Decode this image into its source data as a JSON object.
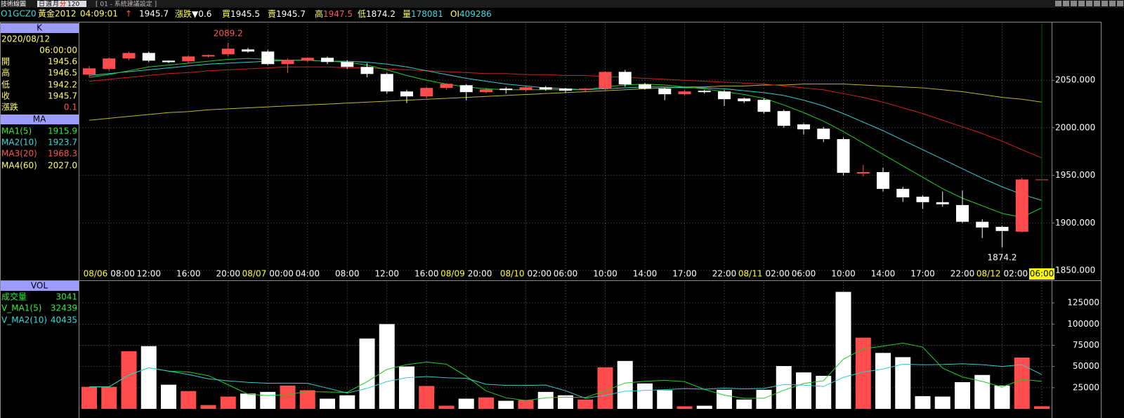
{
  "toolbar": {
    "title": "技術線圖",
    "periods": [
      "日",
      "週",
      "月",
      "分"
    ],
    "count": "120",
    "setting": "[ 01 - 系統建議設定 ]"
  },
  "quote": {
    "symbol": "O1GCZ0",
    "name": "黃金2012",
    "time": "04:09:01",
    "arrow": "↑",
    "last": "1945.7",
    "change_label": "漲跌",
    "change": "▼0.6",
    "bid_label": "買",
    "bid": "1945.5",
    "ask_label": "賣",
    "ask": "1945.7",
    "high_label": "高",
    "high": "1947.5",
    "low_label": "低",
    "low": "1874.2",
    "volume_label": "量",
    "volume": "178081",
    "oi_label": "OI",
    "oi": "409286"
  },
  "info_panel": {
    "k": {
      "title": "K",
      "date": "2020/08/12",
      "time": "06:00:00",
      "rows": [
        {
          "label": "開",
          "value": "1945.6"
        },
        {
          "label": "高",
          "value": "1946.5"
        },
        {
          "label": "低",
          "value": "1942.2"
        },
        {
          "label": "收",
          "value": "1945.7"
        },
        {
          "label": "漲跌",
          "value": "0.1"
        }
      ]
    },
    "ma": {
      "title": "MA",
      "rows": [
        {
          "label": "MA1(5)",
          "value": "1915.9"
        },
        {
          "label": "MA2(10)",
          "value": "1923.7"
        },
        {
          "label": "MA3(20)",
          "value": "1968.3"
        },
        {
          "label": "MA4(60)",
          "value": "2027.0"
        }
      ]
    },
    "vol": {
      "title": "VOL",
      "rows": [
        {
          "label": "成交量",
          "value": "3041"
        },
        {
          "label": "V_MA1(5)",
          "value": "32439"
        },
        {
          "label": "V_MA2(10)",
          "value": "40435"
        }
      ]
    }
  },
  "chart_data": [
    {
      "type": "candlestick",
      "up_color": "#ff4d4d",
      "down_color": "#ffffff",
      "grid": true,
      "categories": [
        null,
        "08:00",
        null,
        "12:00",
        null,
        "16:00",
        null,
        "20:00",
        null,
        "00:00",
        null,
        "04:00",
        null,
        "08:00",
        null,
        "12:00",
        null,
        "16:00",
        null,
        "20:00",
        null,
        null,
        "02:00",
        null,
        "06:00",
        null,
        "10:00",
        null,
        "14:00",
        null,
        "17:00",
        null,
        "22:00",
        null,
        "02:00",
        null,
        "06:00",
        null,
        "10:00",
        null,
        "14:00",
        null,
        "17:00",
        null,
        "22:00",
        null,
        "02:00",
        null,
        "06:00"
      ],
      "dates": [
        null,
        "08/06",
        null,
        null,
        null,
        null,
        null,
        null,
        null,
        "08/07",
        null,
        null,
        null,
        null,
        null,
        null,
        null,
        null,
        null,
        "08/09",
        null,
        null,
        "08/10",
        null,
        null,
        null,
        null,
        null,
        null,
        null,
        null,
        null,
        null,
        null,
        "08/11",
        null,
        null,
        null,
        null,
        null,
        null,
        null,
        null,
        null,
        null,
        null,
        "08/12",
        null,
        null
      ],
      "open": [
        2055.9,
        2061.8,
        2072.9,
        2078.7,
        2070.6,
        2069.9,
        2075,
        2077.3,
        2082.4,
        2080.2,
        2067,
        2070.6,
        2073.6,
        2069.2,
        2064,
        2056.6,
        2038.2,
        2033,
        2041.9,
        2044.8,
        2037.5,
        2041.2,
        2039.7,
        2042.6,
        2041.2,
        2039.7,
        2041.2,
        2058.8,
        2045.6,
        2041.2,
        2035.3,
        2038.9,
        2038.2,
        2030.8,
        2029.4,
        2017.6,
        2003.6,
        1999.1,
        1988.1,
        1952,
        1953.4,
        1935.8,
        1927.6,
        1921.8,
        1918.8,
        1901.2,
        1895.9,
        1890.8,
        1945.6
      ],
      "high": [
        2065,
        2074,
        2080,
        2080,
        2071,
        2076,
        2077,
        2089.2,
        2084,
        2082,
        2073,
        2074,
        2075,
        2071,
        2068,
        2058,
        2040,
        2043,
        2047,
        2046,
        2042,
        2043,
        2044,
        2044,
        2042,
        2042,
        2059.5,
        2061,
        2047,
        2042,
        2040,
        2040,
        2040,
        2032,
        2031,
        2019,
        2005,
        2001,
        1990,
        1961,
        1958,
        1938,
        1929,
        1933,
        1934,
        1904,
        1897,
        1947.5,
        1946.5
      ],
      "low": [
        2053,
        2060,
        2071,
        2069,
        2068,
        2068,
        2074,
        2075,
        2079,
        2066,
        2058,
        2069,
        2067,
        2062,
        2053,
        2036,
        2026,
        2031,
        2040,
        2029,
        2036,
        2036,
        2038,
        2039,
        2037,
        2038,
        2039,
        2043,
        2040,
        2029,
        2034,
        2036,
        2023,
        2026,
        2015,
        2000,
        1993,
        1985,
        1950,
        1949,
        1933,
        1922,
        1915,
        1917,
        1900,
        1884,
        1874.2,
        1890,
        1942.2
      ],
      "close": [
        2062.5,
        2072.9,
        2078.7,
        2070.6,
        2069,
        2075,
        2076.5,
        2083.2,
        2080.2,
        2067,
        2071.4,
        2073.6,
        2069.2,
        2064,
        2056.6,
        2038.2,
        2033,
        2041.9,
        2046.3,
        2037.5,
        2040.4,
        2039.7,
        2042.6,
        2040.4,
        2039,
        2041.2,
        2058.8,
        2045.6,
        2041.2,
        2035.3,
        2038.2,
        2037.5,
        2030.1,
        2027.9,
        2016.8,
        2002.1,
        1998.4,
        1988.1,
        1952.7,
        1953.4,
        1935.8,
        1926.9,
        1921.8,
        1919.6,
        1901.2,
        1895.2,
        1891.5,
        1945.7,
        1945.7
      ],
      "series": [
        {
          "name": "MA1(5)",
          "color": "#22cc22",
          "values": [
            2053,
            2056,
            2060,
            2064,
            2066,
            2068,
            2070,
            2072,
            2073,
            2072,
            2071,
            2071,
            2070,
            2069,
            2066,
            2061,
            2055,
            2050,
            2046,
            2043,
            2041,
            2040,
            2040,
            2040,
            2040,
            2040,
            2043,
            2045,
            2046,
            2045,
            2043,
            2041,
            2038,
            2035,
            2031,
            2024,
            2016,
            2007,
            1996,
            1984,
            1972,
            1960,
            1948,
            1936,
            1926,
            1918,
            1910,
            1906,
            1915.9
          ]
        },
        {
          "name": "MA2(10)",
          "color": "#33cccc",
          "values": [
            2055,
            2057,
            2059,
            2061,
            2063,
            2065,
            2067,
            2068,
            2069,
            2070,
            2071,
            2071,
            2070,
            2070,
            2069,
            2067,
            2064,
            2060,
            2056,
            2052,
            2049,
            2046,
            2044,
            2042,
            2041,
            2040,
            2041,
            2042,
            2043,
            2043,
            2042,
            2042,
            2041,
            2039,
            2037,
            2034,
            2029,
            2023,
            2015,
            2006,
            1997,
            1987,
            1977,
            1967,
            1957,
            1947,
            1938,
            1930,
            1923.7
          ]
        },
        {
          "name": "MA3(20)",
          "color": "#cc2222",
          "values": [
            2049,
            2051,
            2053,
            2055,
            2057,
            2058,
            2060,
            2061,
            2062,
            2063,
            2064,
            2064,
            2064,
            2063,
            2063,
            2062,
            2061,
            2060,
            2059,
            2058,
            2057,
            2057,
            2056,
            2056,
            2055,
            2055,
            2054,
            2053,
            2052,
            2051,
            2050,
            2049,
            2048,
            2047,
            2046,
            2044,
            2042,
            2040,
            2036,
            2032,
            2027,
            2021,
            2015,
            2008,
            2001,
            1994,
            1986,
            1977,
            1968.3
          ]
        },
        {
          "name": "MA4(60)",
          "color": "#b8b830",
          "values": [
            2008,
            2010,
            2012,
            2014,
            2016,
            2017,
            2019,
            2020,
            2021,
            2022,
            2023,
            2024,
            2025,
            2026,
            2027,
            2028,
            2029,
            2030,
            2031,
            2032,
            2033,
            2034,
            2035,
            2036,
            2037,
            2038,
            2039,
            2040,
            2041,
            2042,
            2043,
            2043,
            2044,
            2044,
            2045,
            2045,
            2046,
            2046,
            2046,
            2045,
            2044,
            2043,
            2042,
            2040,
            2038,
            2035,
            2032,
            2030,
            2027
          ]
        }
      ],
      "ylim": [
        1850,
        2110
      ],
      "yticks": [
        {
          "value": 1850,
          "label": "1850.000"
        },
        {
          "value": 1900,
          "label": "1900.000"
        },
        {
          "value": 1950,
          "label": "1950.000"
        },
        {
          "value": 2000,
          "label": "2000.000"
        },
        {
          "value": 2050,
          "label": "2050.000"
        }
      ]
    },
    {
      "type": "bar",
      "grid": true,
      "values": [
        26000,
        26000,
        68000,
        74000,
        28500,
        21000,
        4500,
        14500,
        18000,
        20000,
        27500,
        22000,
        12000,
        16000,
        83000,
        100000,
        50000,
        27000,
        3700,
        12000,
        13500,
        9500,
        10500,
        20000,
        16000,
        11000,
        49000,
        56500,
        30000,
        22000,
        3000,
        3700,
        22500,
        11000,
        22500,
        50500,
        43000,
        39000,
        138000,
        84000,
        66000,
        61000,
        15000,
        14500,
        31500,
        40000,
        27500,
        60500,
        3041
      ],
      "series": [
        {
          "name": "V_MA1(5)",
          "color": "#22cc22",
          "values": [
            26000,
            26000,
            40000,
            48500,
            44500,
            43500,
            39200,
            28500,
            17300,
            15600,
            16900,
            20400,
            19900,
            19500,
            32100,
            46600,
            52200,
            55200,
            52700,
            38500,
            21200,
            13100,
            9800,
            13100,
            13900,
            13400,
            21300,
            30500,
            32500,
            33700,
            32100,
            23000,
            16200,
            12400,
            12500,
            22000,
            29900,
            33200,
            58600,
            70900,
            74000,
            77600,
            72800,
            48100,
            37600,
            32400,
            25700,
            34800,
            32439
          ]
        },
        {
          "name": "V_MA2(10)",
          "color": "#33cccc",
          "values": [
            26000,
            26000,
            40000,
            48500,
            44500,
            40600,
            35400,
            33000,
            31300,
            30300,
            30400,
            30100,
            24500,
            18700,
            24200,
            32200,
            36800,
            38100,
            36700,
            36000,
            29000,
            27800,
            27700,
            28100,
            21400,
            12500,
            16100,
            20800,
            21800,
            22700,
            23900,
            23200,
            24400,
            23500,
            24100,
            28700,
            28100,
            26400,
            37200,
            43400,
            47000,
            52700,
            52000,
            52300,
            53200,
            52100,
            50000,
            52100,
            40435
          ]
        }
      ],
      "ylim": [
        0,
        150000
      ],
      "yticks": [
        25000,
        50000,
        75000,
        100000,
        125000
      ]
    }
  ]
}
